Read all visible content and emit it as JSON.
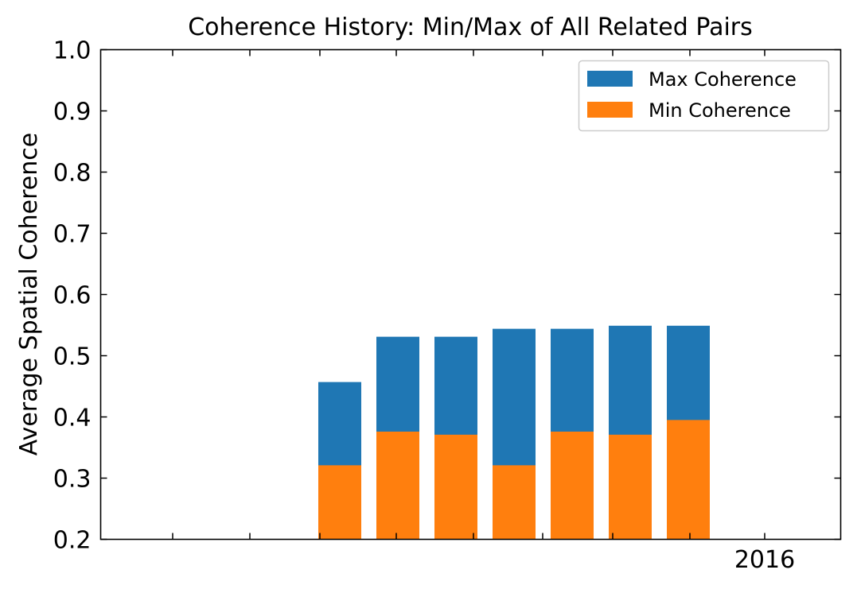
{
  "chart_data": {
    "type": "bar",
    "stacked_overlay": true,
    "title": "Coherence History: Min/Max of All Related Pairs",
    "xlabel": "",
    "ylabel": "Average Spatial Coherence",
    "ylim": [
      0.2,
      1.0
    ],
    "yticks": [
      "0.2",
      "0.3",
      "0.4",
      "0.5",
      "0.6",
      "0.7",
      "0.8",
      "0.9",
      "1.0"
    ],
    "xtick_labels": [
      "2016"
    ],
    "grid": false,
    "legend_position": "top-right",
    "series": [
      {
        "name": "Max Coherence",
        "color": "#1f77b4",
        "values": [
          0.457,
          0.531,
          0.531,
          0.544,
          0.544,
          0.549,
          0.549
        ]
      },
      {
        "name": "Min Coherence",
        "color": "#ff7f0e",
        "values": [
          0.321,
          0.376,
          0.371,
          0.321,
          0.376,
          0.371,
          0.395
        ]
      }
    ]
  }
}
